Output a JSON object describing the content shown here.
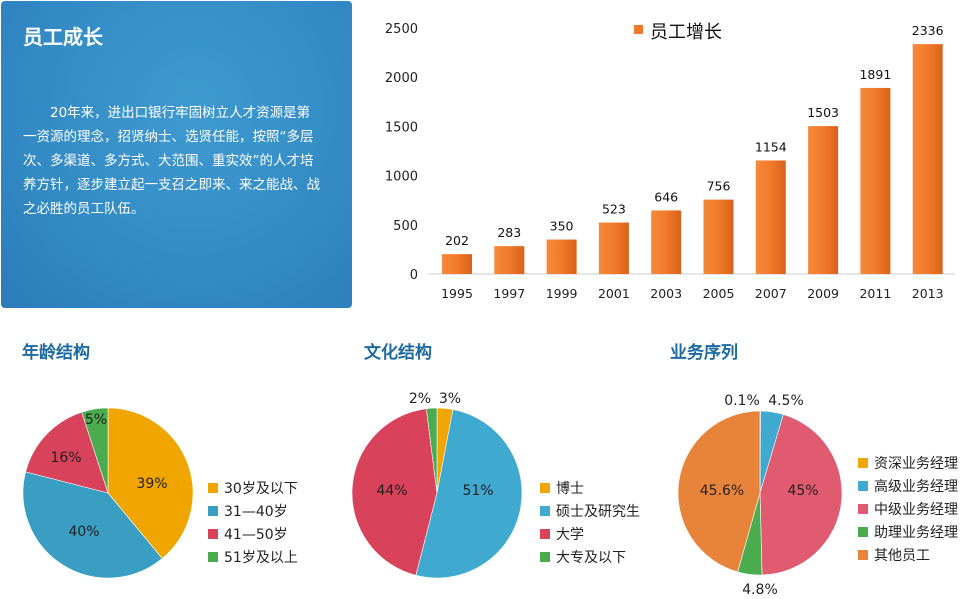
{
  "panel": {
    "title": "员工成长",
    "body": "20年来，进出口银行牢固树立人才资源是第一资源的理念，招贤纳士、选贤任能，按照“多层次、多渠道、多方式、大范围、重实效”的人才培养方针，逐步建立起一支召之即来、来之能战、战之必胜的员工队伍。"
  },
  "chart_data": [
    {
      "type": "bar",
      "legend": "员工增长",
      "legend_position": "top",
      "categories": [
        "1995",
        "1997",
        "1999",
        "2001",
        "2003",
        "2005",
        "2007",
        "2009",
        "2011",
        "2013"
      ],
      "values": [
        202,
        283,
        350,
        523,
        646,
        756,
        1154,
        1503,
        1891,
        2336
      ],
      "ylim": [
        0,
        2500
      ],
      "yticks": [
        0,
        500,
        1000,
        1500,
        2000,
        2500
      ],
      "grid": false,
      "color": "#f07a2a"
    },
    {
      "type": "pie",
      "title": "年龄结构",
      "categories": [
        "30岁及以下",
        "31—40岁",
        "41—50岁",
        "51岁及以上"
      ],
      "values": [
        39,
        40,
        16,
        5
      ],
      "labels": [
        "39%",
        "40%",
        "16%",
        "5%"
      ],
      "colors": [
        "#f0a500",
        "#3a9dc2",
        "#d8425a",
        "#4aab4f"
      ],
      "legend_position": "right"
    },
    {
      "type": "pie",
      "title": "文化结构",
      "categories": [
        "博士",
        "硕士及研究生",
        "大学",
        "大专及以下"
      ],
      "values": [
        3,
        51,
        44,
        2
      ],
      "labels": [
        "3%",
        "51%",
        "44%",
        "2%"
      ],
      "colors": [
        "#f0a500",
        "#3fa9cf",
        "#d8425a",
        "#4aab4f"
      ],
      "legend_position": "right"
    },
    {
      "type": "pie",
      "title": "业务序列",
      "categories": [
        "资深业务经理",
        "高级业务经理",
        "中级业务经理",
        "助理业务经理",
        "其他员工"
      ],
      "values": [
        0.1,
        4.5,
        45,
        4.8,
        45.6
      ],
      "labels": [
        "0.1%",
        "4.5%",
        "45%",
        "4.8%",
        "45.6%"
      ],
      "colors": [
        "#f0a500",
        "#3fa9cf",
        "#e05a70",
        "#4aab4f",
        "#e8843a"
      ],
      "legend_position": "right"
    }
  ]
}
